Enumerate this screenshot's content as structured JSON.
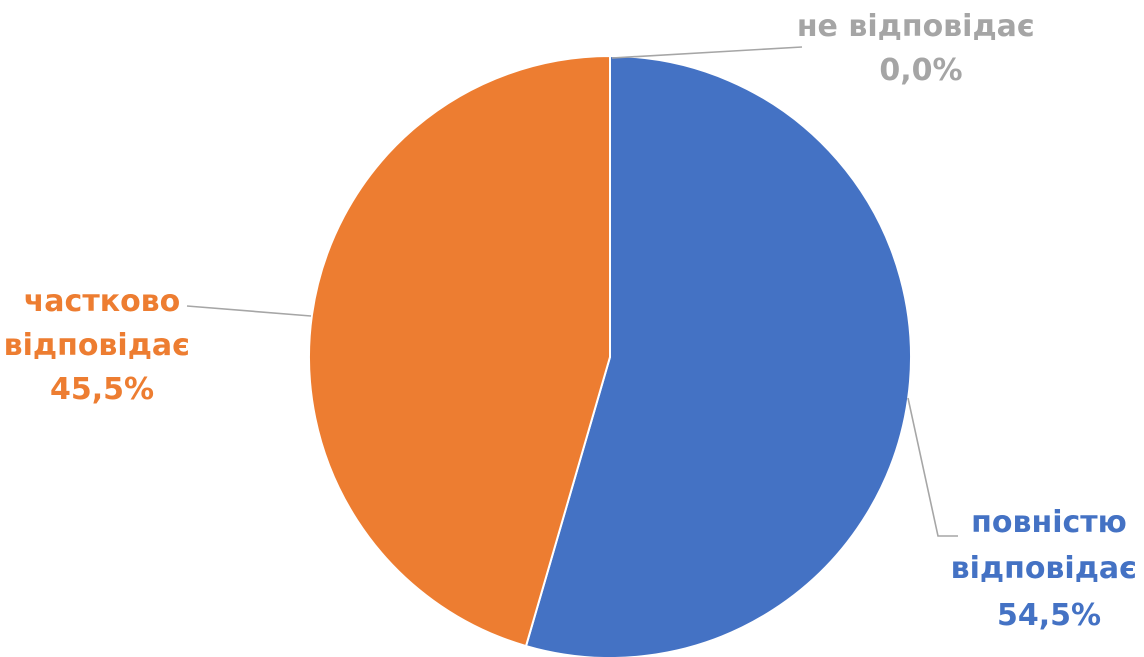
{
  "chart_data": {
    "type": "pie",
    "title": "",
    "start_angle_deg": 0,
    "direction": "clockwise",
    "slices": [
      {
        "label": "не відповідає",
        "value": 0.0,
        "value_label": "0,0%",
        "color": "#A5A5A5"
      },
      {
        "label": "повністю відповідає",
        "value": 54.5,
        "value_label": "54,5%",
        "color": "#4472C4"
      },
      {
        "label": "частково відповідає",
        "value": 45.5,
        "value_label": "45,5%",
        "color": "#ED7D31"
      }
    ],
    "legend": "none",
    "data_labels": "outside-with-leader-lines",
    "leader_line_color": "#A6A6A6"
  }
}
